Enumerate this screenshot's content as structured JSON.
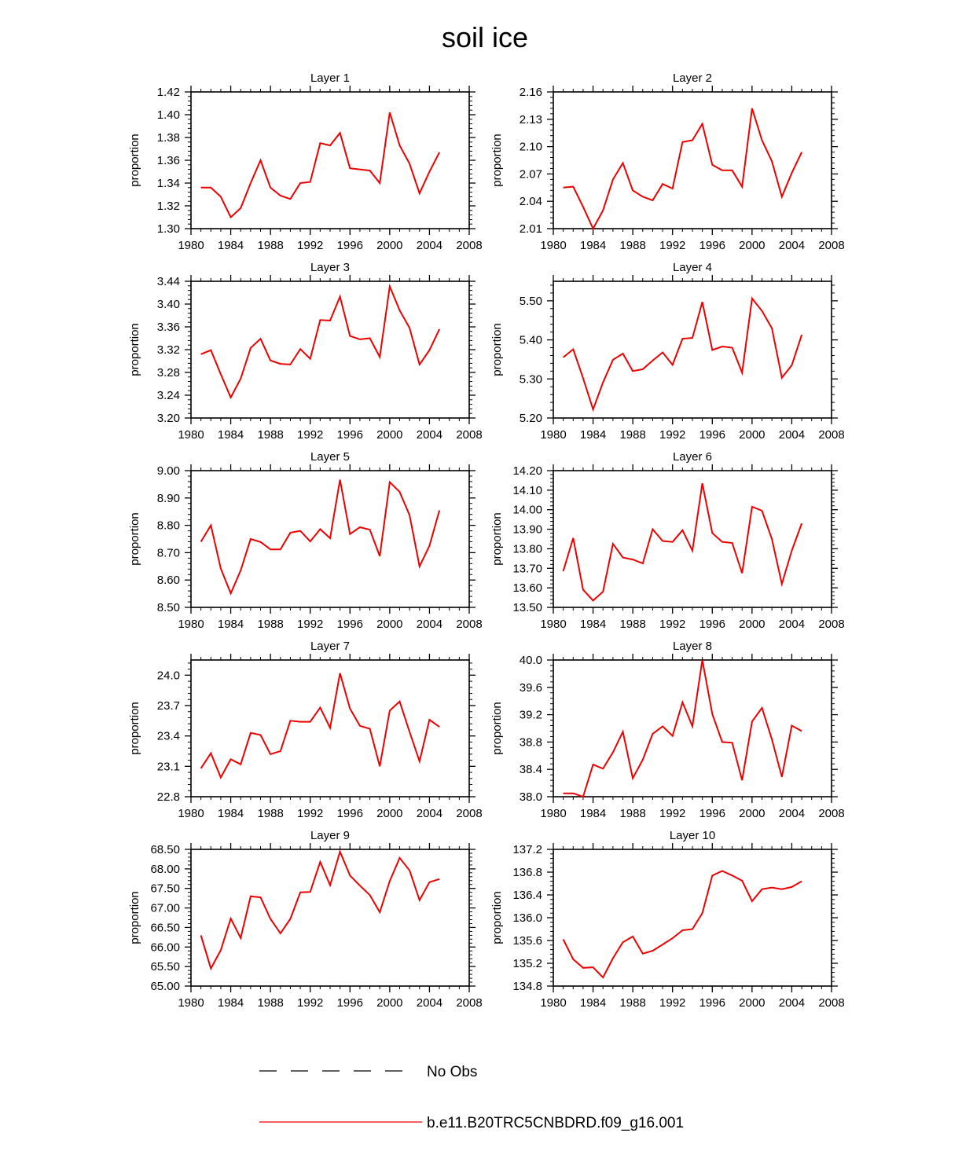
{
  "title": "soil ice",
  "colors": {
    "series": "#ee0000",
    "obs": "#000000",
    "axis": "#000000"
  },
  "legend": [
    {
      "label": "No Obs",
      "style": "dashed",
      "color": "#000000"
    },
    {
      "label": "b.e11.B20TRC5CNBDRD.f09_g16.001",
      "style": "solid",
      "color": "#ee0000"
    }
  ],
  "chart_data": [
    {
      "type": "line",
      "title": "Layer 1",
      "ylabel": "proportion",
      "xlim": [
        1980,
        2008
      ],
      "xticks": [
        1980,
        1984,
        1988,
        1992,
        1996,
        2000,
        2004,
        2008
      ],
      "ylim": [
        1.3,
        1.42
      ],
      "yticks": [
        "1.30",
        "1.32",
        "1.34",
        "1.36",
        "1.38",
        "1.40",
        "1.42"
      ],
      "yminor": 4,
      "x": [
        1981,
        1982,
        1983,
        1984,
        1985,
        1986,
        1987,
        1988,
        1989,
        1990,
        1991,
        1992,
        1993,
        1994,
        1995,
        1996,
        1997,
        1998,
        1999,
        2000,
        2001,
        2002,
        2003,
        2004,
        2005
      ],
      "values": [
        1.336,
        1.336,
        1.328,
        1.31,
        1.318,
        1.34,
        1.36,
        1.336,
        1.329,
        1.326,
        1.34,
        1.341,
        1.375,
        1.373,
        1.384,
        1.353,
        1.352,
        1.351,
        1.34,
        1.402,
        1.373,
        1.357,
        1.331,
        1.35,
        1.367
      ]
    },
    {
      "type": "line",
      "title": "Layer 2",
      "ylabel": "proportion",
      "xlim": [
        1980,
        2008
      ],
      "xticks": [
        1980,
        1984,
        1988,
        1992,
        1996,
        2000,
        2004,
        2008
      ],
      "ylim": [
        2.01,
        2.16
      ],
      "yticks": [
        "2.01",
        "2.04",
        "2.07",
        "2.10",
        "2.13",
        "2.16"
      ],
      "yminor": 4,
      "x": [
        1981,
        1982,
        1983,
        1984,
        1985,
        1986,
        1987,
        1988,
        1989,
        1990,
        1991,
        1992,
        1993,
        1994,
        1995,
        1996,
        1997,
        1998,
        1999,
        2000,
        2001,
        2002,
        2003,
        2004,
        2005
      ],
      "values": [
        2.055,
        2.056,
        2.034,
        2.01,
        2.03,
        2.064,
        2.082,
        2.052,
        2.045,
        2.041,
        2.059,
        2.054,
        2.105,
        2.107,
        2.125,
        2.08,
        2.074,
        2.074,
        2.056,
        2.142,
        2.107,
        2.084,
        2.045,
        2.071,
        2.094
      ]
    },
    {
      "type": "line",
      "title": "Layer 3",
      "ylabel": "proportion",
      "xlim": [
        1980,
        2008
      ],
      "xticks": [
        1980,
        1984,
        1988,
        1992,
        1996,
        2000,
        2004,
        2008
      ],
      "ylim": [
        3.2,
        3.44
      ],
      "yticks": [
        "3.20",
        "3.24",
        "3.28",
        "3.32",
        "3.36",
        "3.40",
        "3.44"
      ],
      "yminor": 4,
      "x": [
        1981,
        1982,
        1983,
        1984,
        1985,
        1986,
        1987,
        1988,
        1989,
        1990,
        1991,
        1992,
        1993,
        1994,
        1995,
        1996,
        1997,
        1998,
        1999,
        2000,
        2001,
        2002,
        2003,
        2004,
        2005
      ],
      "values": [
        3.312,
        3.319,
        3.277,
        3.236,
        3.269,
        3.323,
        3.339,
        3.301,
        3.295,
        3.294,
        3.321,
        3.304,
        3.372,
        3.371,
        3.413,
        3.344,
        3.338,
        3.34,
        3.307,
        3.431,
        3.389,
        3.358,
        3.294,
        3.319,
        3.356
      ]
    },
    {
      "type": "line",
      "title": "Layer 4",
      "ylabel": "proportion",
      "xlim": [
        1980,
        2008
      ],
      "xticks": [
        1980,
        1984,
        1988,
        1992,
        1996,
        2000,
        2004,
        2008
      ],
      "ylim": [
        5.2,
        5.55
      ],
      "yticks": [
        "5.20",
        "5.30",
        "5.40",
        "5.50"
      ],
      "yminor": 4,
      "x": [
        1981,
        1982,
        1983,
        1984,
        1985,
        1986,
        1987,
        1988,
        1989,
        1990,
        1991,
        1992,
        1993,
        1994,
        1995,
        1996,
        1997,
        1998,
        1999,
        2000,
        2001,
        2002,
        2003,
        2004,
        2005
      ],
      "values": [
        5.355,
        5.376,
        5.302,
        5.222,
        5.291,
        5.349,
        5.365,
        5.32,
        5.325,
        5.347,
        5.368,
        5.336,
        5.403,
        5.405,
        5.497,
        5.374,
        5.383,
        5.38,
        5.316,
        5.506,
        5.474,
        5.43,
        5.303,
        5.335,
        5.413
      ]
    },
    {
      "type": "line",
      "title": "Layer 5",
      "ylabel": "proportion",
      "xlim": [
        1980,
        2008
      ],
      "xticks": [
        1980,
        1984,
        1988,
        1992,
        1996,
        2000,
        2004,
        2008
      ],
      "ylim": [
        8.5,
        9.0
      ],
      "yticks": [
        "8.50",
        "8.60",
        "8.70",
        "8.80",
        "8.90",
        "9.00"
      ],
      "yminor": 4,
      "x": [
        1981,
        1982,
        1983,
        1984,
        1985,
        1986,
        1987,
        1988,
        1989,
        1990,
        1991,
        1992,
        1993,
        1994,
        1995,
        1996,
        1997,
        1998,
        1999,
        2000,
        2001,
        2002,
        2003,
        2004,
        2005
      ],
      "values": [
        8.74,
        8.8,
        8.642,
        8.551,
        8.635,
        8.75,
        8.739,
        8.712,
        8.712,
        8.773,
        8.78,
        8.741,
        8.786,
        8.753,
        8.967,
        8.768,
        8.793,
        8.784,
        8.687,
        8.958,
        8.922,
        8.837,
        8.65,
        8.725,
        8.855
      ]
    },
    {
      "type": "line",
      "title": "Layer 6",
      "ylabel": "proportion",
      "xlim": [
        1980,
        2008
      ],
      "xticks": [
        1980,
        1984,
        1988,
        1992,
        1996,
        2000,
        2004,
        2008
      ],
      "ylim": [
        13.5,
        14.2
      ],
      "yticks": [
        "13.50",
        "13.60",
        "13.70",
        "13.80",
        "13.90",
        "14.00",
        "14.10",
        "14.20"
      ],
      "yminor": 4,
      "x": [
        1981,
        1982,
        1983,
        1984,
        1985,
        1986,
        1987,
        1988,
        1989,
        1990,
        1991,
        1992,
        1993,
        1994,
        1995,
        1996,
        1997,
        1998,
        1999,
        2000,
        2001,
        2002,
        2003,
        2004,
        2005
      ],
      "values": [
        13.685,
        13.855,
        13.59,
        13.535,
        13.58,
        13.825,
        13.755,
        13.745,
        13.725,
        13.9,
        13.84,
        13.835,
        13.895,
        13.79,
        14.135,
        13.88,
        13.835,
        13.83,
        13.675,
        14.015,
        13.995,
        13.85,
        13.62,
        13.79,
        13.93
      ]
    },
    {
      "type": "line",
      "title": "Layer 7",
      "ylabel": "proportion",
      "xlim": [
        1980,
        2008
      ],
      "xticks": [
        1980,
        1984,
        1988,
        1992,
        1996,
        2000,
        2004,
        2008
      ],
      "ylim": [
        22.8,
        24.15
      ],
      "yticks": [
        "22.8",
        "23.1",
        "23.4",
        "23.7",
        "24.0"
      ],
      "yminor": 4,
      "x": [
        1981,
        1982,
        1983,
        1984,
        1985,
        1986,
        1987,
        1988,
        1989,
        1990,
        1991,
        1992,
        1993,
        1994,
        1995,
        1996,
        1997,
        1998,
        1999,
        2000,
        2001,
        2002,
        2003,
        2004,
        2005
      ],
      "values": [
        23.08,
        23.23,
        22.99,
        23.17,
        23.12,
        23.43,
        23.41,
        23.22,
        23.25,
        23.55,
        23.54,
        23.54,
        23.68,
        23.48,
        24.02,
        23.67,
        23.5,
        23.47,
        23.1,
        23.65,
        23.74,
        23.44,
        23.15,
        23.56,
        23.49
      ]
    },
    {
      "type": "line",
      "title": "Layer 8",
      "ylabel": "proportion",
      "xlim": [
        1980,
        2008
      ],
      "xticks": [
        1980,
        1984,
        1988,
        1992,
        1996,
        2000,
        2004,
        2008
      ],
      "ylim": [
        38.0,
        40.0
      ],
      "yticks": [
        "38.0",
        "38.4",
        "38.8",
        "39.2",
        "39.6",
        "40.0"
      ],
      "yminor": 4,
      "x": [
        1981,
        1982,
        1983,
        1984,
        1985,
        1986,
        1987,
        1988,
        1989,
        1990,
        1991,
        1992,
        1993,
        1994,
        1995,
        1996,
        1997,
        1998,
        1999,
        2000,
        2001,
        2002,
        2003,
        2004,
        2005
      ],
      "values": [
        38.05,
        38.05,
        38.0,
        38.47,
        38.41,
        38.65,
        38.95,
        38.27,
        38.54,
        38.92,
        39.03,
        38.89,
        39.38,
        39.03,
        40.0,
        39.21,
        38.8,
        38.79,
        38.24,
        39.1,
        39.3,
        38.84,
        38.29,
        39.04,
        38.96
      ]
    },
    {
      "type": "line",
      "title": "Layer 9",
      "ylabel": "proportion",
      "xlim": [
        1980,
        2008
      ],
      "xticks": [
        1980,
        1984,
        1988,
        1992,
        1996,
        2000,
        2004,
        2008
      ],
      "ylim": [
        65.0,
        68.5
      ],
      "yticks": [
        "65.00",
        "65.50",
        "66.00",
        "66.50",
        "67.00",
        "67.50",
        "68.00",
        "68.50"
      ],
      "yminor": 4,
      "x": [
        1981,
        1982,
        1983,
        1984,
        1985,
        1986,
        1987,
        1988,
        1989,
        1990,
        1991,
        1992,
        1993,
        1994,
        1995,
        1996,
        1997,
        1998,
        1999,
        2000,
        2001,
        2002,
        2003,
        2004,
        2005
      ],
      "values": [
        66.3,
        65.45,
        65.92,
        66.73,
        66.23,
        67.3,
        67.27,
        66.72,
        66.35,
        66.72,
        67.4,
        67.41,
        68.18,
        67.58,
        68.44,
        67.83,
        67.57,
        67.33,
        66.89,
        67.69,
        68.28,
        67.96,
        67.2,
        67.66,
        67.74
      ]
    },
    {
      "type": "line",
      "title": "Layer 10",
      "ylabel": "proportion",
      "xlim": [
        1980,
        2008
      ],
      "xticks": [
        1980,
        1984,
        1988,
        1992,
        1996,
        2000,
        2004,
        2008
      ],
      "ylim": [
        134.8,
        137.2
      ],
      "yticks": [
        "134.8",
        "135.2",
        "135.6",
        "136.0",
        "136.4",
        "136.8",
        "137.2"
      ],
      "yminor": 4,
      "x": [
        1981,
        1982,
        1983,
        1984,
        1985,
        1986,
        1987,
        1988,
        1989,
        1990,
        1991,
        1992,
        1993,
        1994,
        1995,
        1996,
        1997,
        1998,
        1999,
        2000,
        2001,
        2002,
        2003,
        2004,
        2005
      ],
      "values": [
        135.62,
        135.27,
        135.12,
        135.13,
        134.95,
        135.29,
        135.57,
        135.67,
        135.37,
        135.42,
        135.53,
        135.64,
        135.78,
        135.8,
        136.08,
        136.74,
        136.82,
        136.74,
        136.65,
        136.29,
        136.5,
        136.53,
        136.5,
        136.54,
        136.64
      ]
    }
  ]
}
